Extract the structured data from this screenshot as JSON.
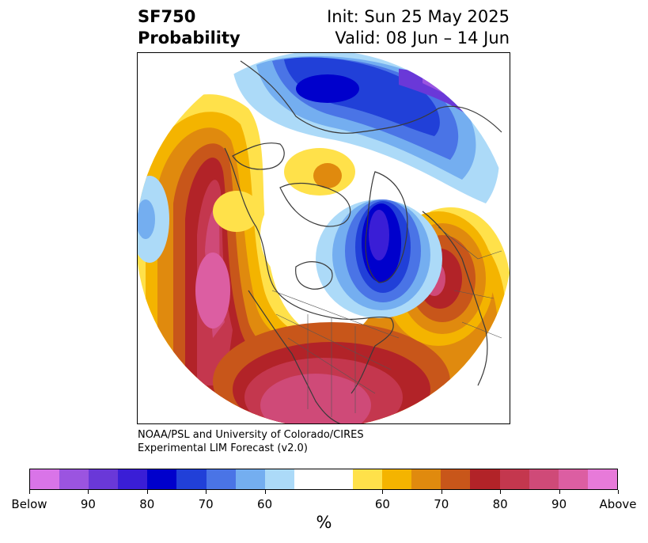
{
  "title": {
    "left_line1": "SF750",
    "left_line2": "Probability",
    "right_line1": "Init: Sun 25 May 2025",
    "right_line2": "Valid: 08 Jun – 14 Jun"
  },
  "credit": {
    "line1": "NOAA/PSL and University of Colorado/CIRES",
    "line2": "Experimental LIM Forecast (v2.0)"
  },
  "colorbar": {
    "colors": [
      "#d974e8",
      "#9b54e0",
      "#6a38d8",
      "#3a1ed6",
      "#0000cc",
      "#2140d8",
      "#4a74e6",
      "#74aef0",
      "#acdaf8",
      "#ffffff",
      "#ffffff",
      "#ffe14a",
      "#f4b400",
      "#e08a0e",
      "#c8561a",
      "#b22328",
      "#c4374e",
      "#cf4a78",
      "#dc5ea2",
      "#e77ad9"
    ],
    "tick_labels": [
      "Below",
      "90",
      "80",
      "70",
      "60",
      "60",
      "70",
      "80",
      "90",
      "Above"
    ],
    "unit": "%"
  },
  "map": {
    "projection": "north polar stereographic",
    "field": "SF750 probability"
  }
}
